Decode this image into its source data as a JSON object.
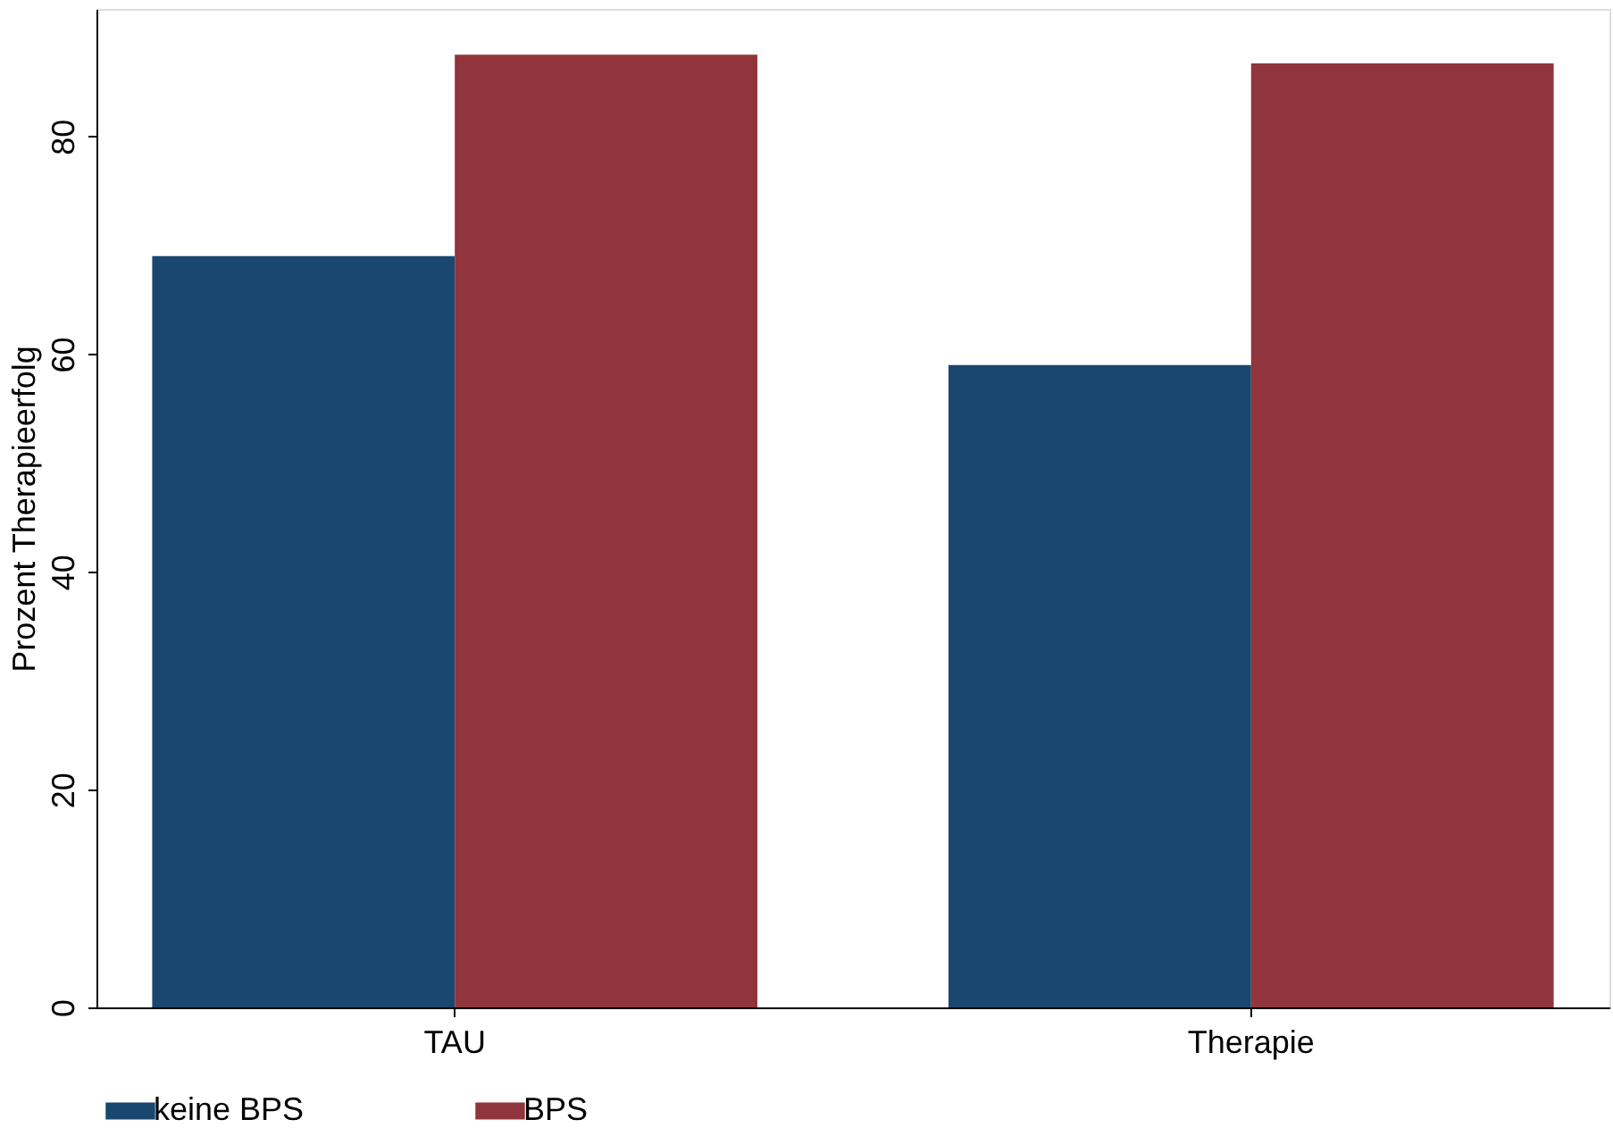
{
  "chart_data": {
    "type": "bar",
    "ylabel": "Prozent Therapieerfolg",
    "categories": [
      "TAU",
      "Therapie"
    ],
    "series": [
      {
        "name": "keine BPS",
        "color": "#1a476f",
        "values": [
          69,
          59
        ]
      },
      {
        "name": "BPS",
        "color": "#90353b",
        "values": [
          87.5,
          86.7
        ]
      }
    ],
    "ylim": [
      0,
      91.7
    ],
    "yticks": [
      0,
      20,
      40,
      60,
      80
    ],
    "grid": false,
    "legend": "bottom"
  }
}
